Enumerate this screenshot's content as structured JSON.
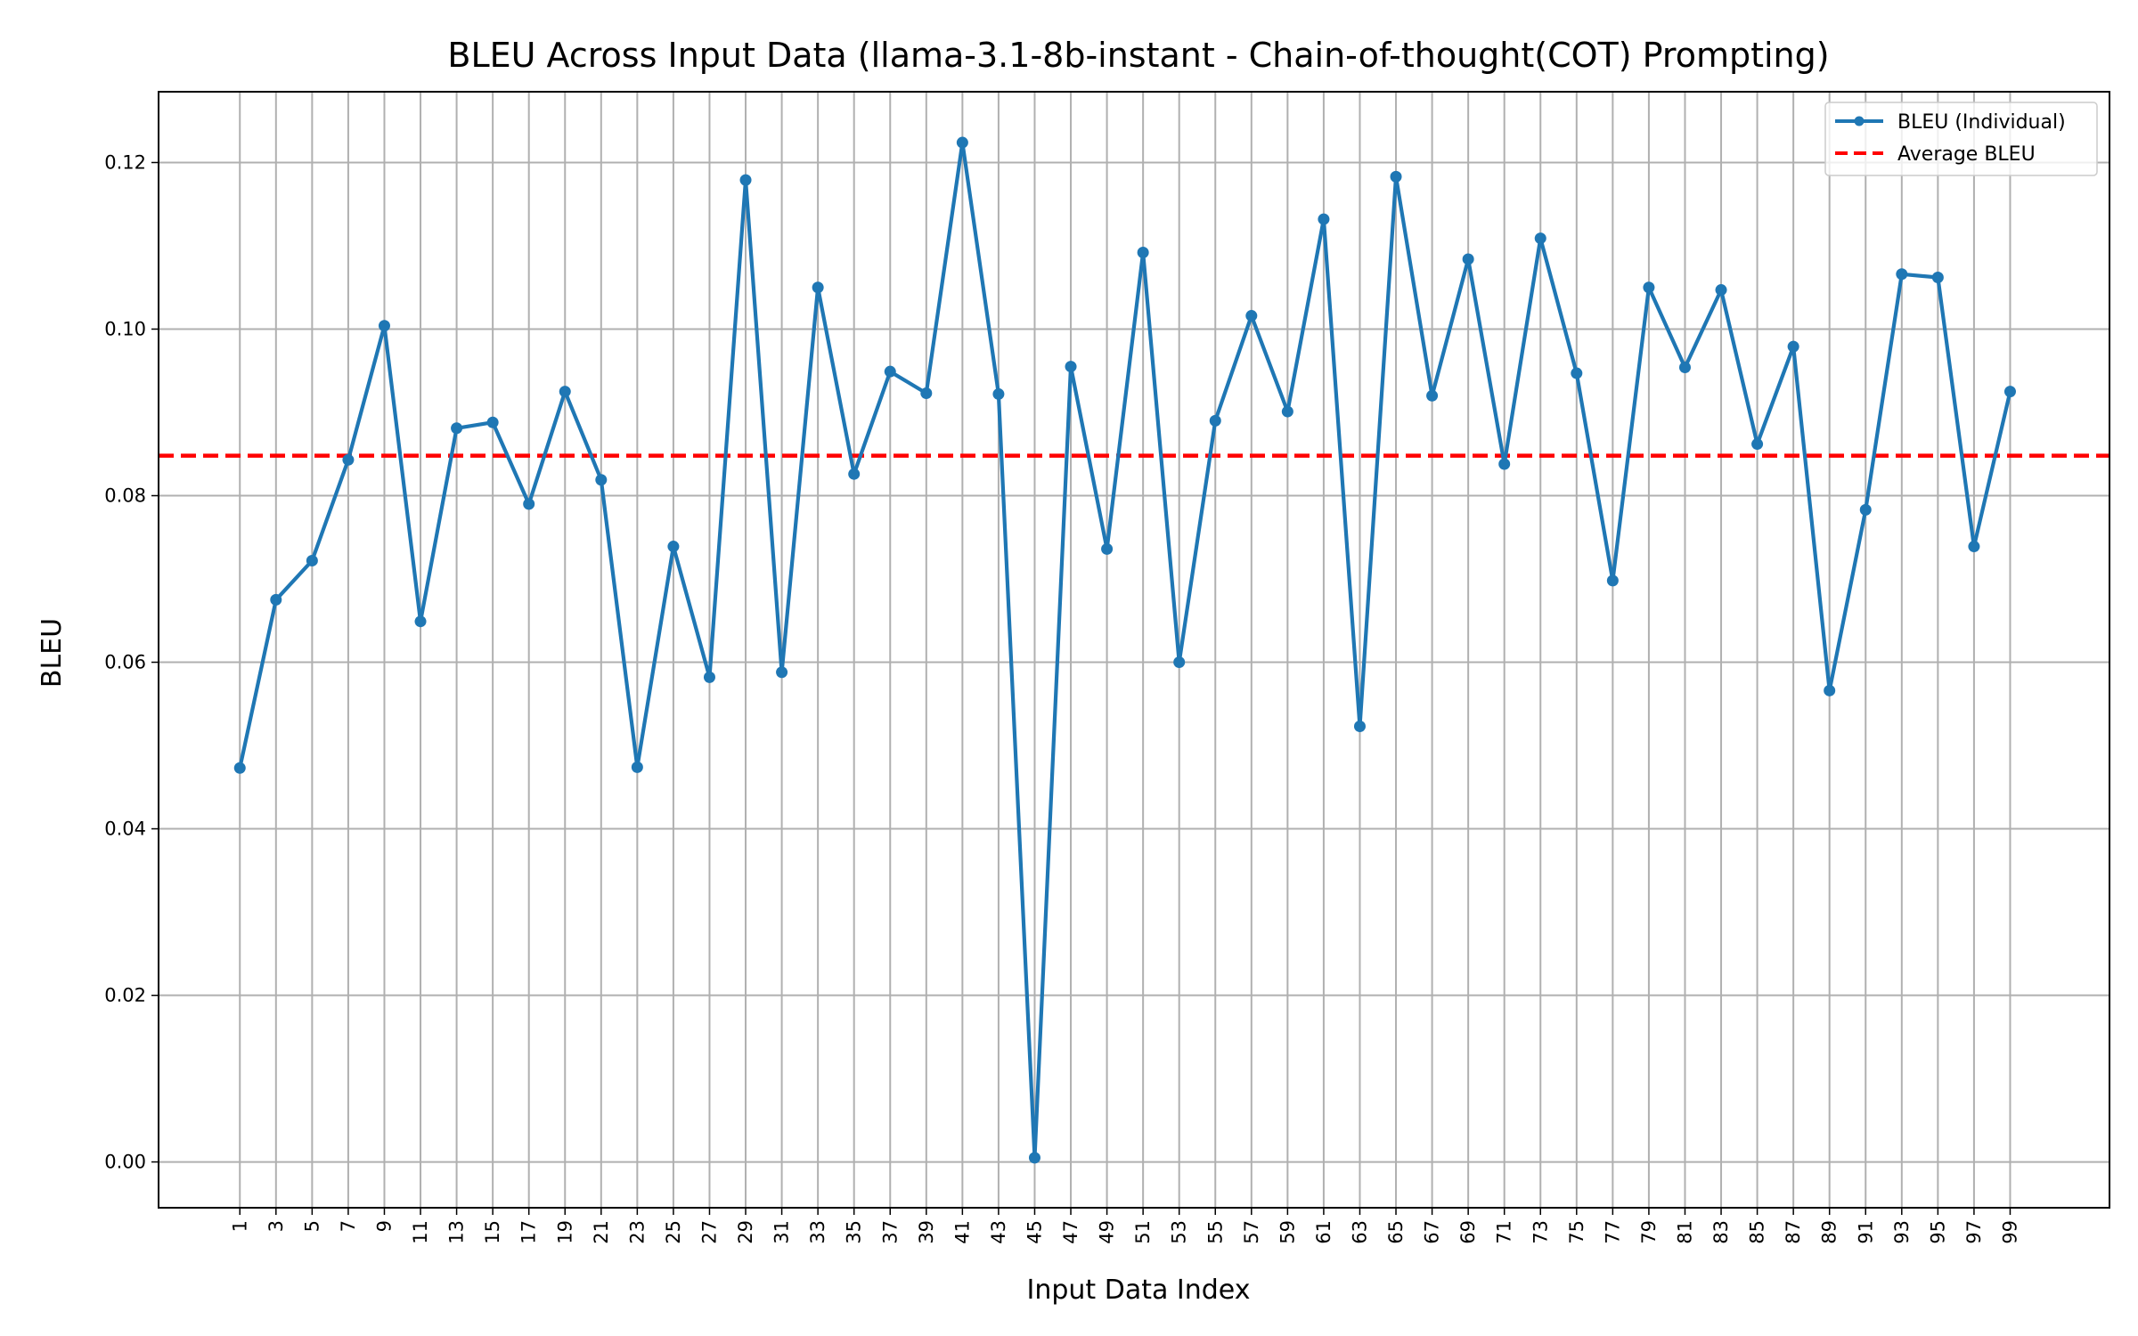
{
  "chart_data": {
    "type": "line",
    "title": "BLEU Across Input Data (llama-3.1-8b-instant - Chain-of-thought(COT) Prompting)",
    "xlabel": "Input Data Index",
    "ylabel": "BLEU",
    "xlim": [
      -3.5,
      104.5
    ],
    "ylim": [
      -0.0055,
      0.1285
    ],
    "grid": true,
    "legend_position": "top-right",
    "x_ticks": [
      1,
      3,
      5,
      7,
      9,
      11,
      13,
      15,
      17,
      19,
      21,
      23,
      25,
      27,
      29,
      31,
      33,
      35,
      37,
      39,
      41,
      43,
      45,
      47,
      49,
      51,
      53,
      55,
      57,
      59,
      61,
      63,
      65,
      67,
      69,
      71,
      73,
      75,
      77,
      79,
      81,
      83,
      85,
      87,
      89,
      91,
      93,
      95,
      97,
      99
    ],
    "y_ticks": [
      "0.00",
      "0.02",
      "0.04",
      "0.06",
      "0.08",
      "0.10",
      "0.12"
    ],
    "y_tick_values": [
      0.0,
      0.02,
      0.04,
      0.06,
      0.08,
      0.1,
      0.12
    ],
    "series": [
      {
        "name": "BLEU (Individual)",
        "color": "#1f77b4",
        "style": "solid-line-with-markers",
        "x": [
          1,
          3,
          5,
          7,
          9,
          11,
          13,
          15,
          17,
          19,
          21,
          23,
          25,
          27,
          29,
          31,
          33,
          35,
          37,
          39,
          41,
          43,
          45,
          47,
          49,
          51,
          53,
          55,
          57,
          59,
          61,
          63,
          65,
          67,
          69,
          71,
          73,
          75,
          77,
          79,
          81,
          83,
          85,
          87,
          89,
          91,
          93,
          95,
          97,
          99
        ],
        "values": [
          0.0473,
          0.0675,
          0.0722,
          0.0843,
          0.1004,
          0.0649,
          0.0881,
          0.0888,
          0.079,
          0.0925,
          0.0819,
          0.0474,
          0.0739,
          0.0582,
          0.1179,
          0.0588,
          0.105,
          0.0826,
          0.0949,
          0.0923,
          0.1224,
          0.0922,
          0.0005,
          0.0955,
          0.0736,
          0.1092,
          0.06,
          0.089,
          0.1016,
          0.0901,
          0.1132,
          0.0523,
          0.1183,
          0.092,
          0.1084,
          0.0838,
          0.1109,
          0.0947,
          0.0698,
          0.105,
          0.0954,
          0.1047,
          0.0862,
          0.0979,
          0.0566,
          0.0783,
          0.1066,
          0.1062,
          0.0739,
          0.0925
        ]
      },
      {
        "name": "Average BLEU",
        "color": "#ff0000",
        "style": "dashed",
        "value": 0.0848
      }
    ]
  }
}
